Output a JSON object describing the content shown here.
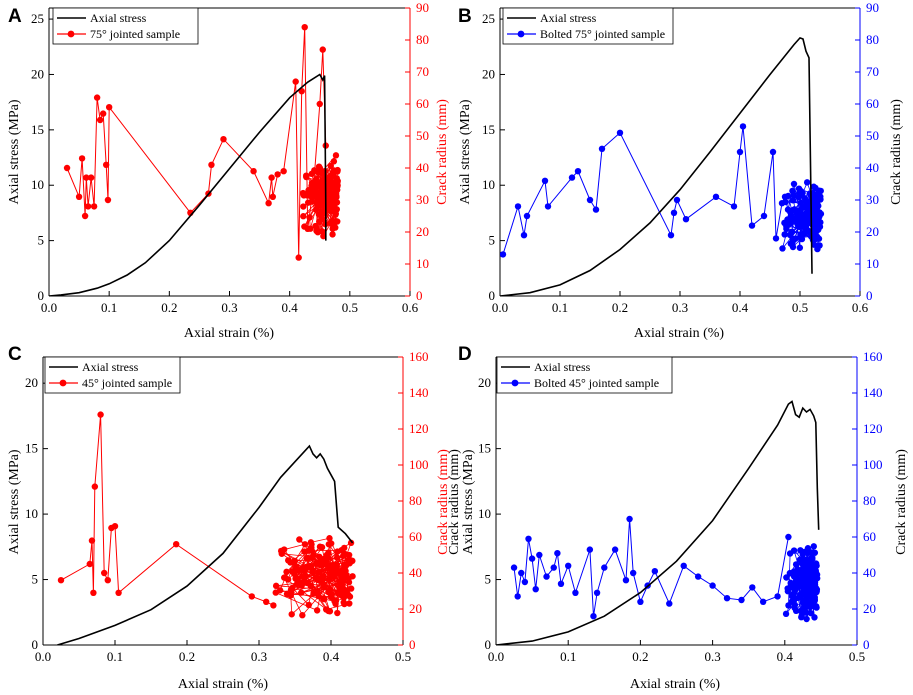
{
  "chart_data": [
    {
      "panel": "A",
      "type": "line+scatter",
      "xlabel": "Axial strain (%)",
      "ylabel": "Axial stress (MPa)",
      "y2label": "Crack radius (mm)",
      "xlim": [
        0,
        0.6
      ],
      "ylim": [
        0,
        26
      ],
      "y2lim": [
        0,
        90
      ],
      "xticks": [
        "0.0",
        "0.1",
        "0.2",
        "0.3",
        "0.4",
        "0.5",
        "0.6"
      ],
      "yticks": [
        "0",
        "5",
        "10",
        "15",
        "20",
        "25"
      ],
      "y2ticks": [
        "0",
        "10",
        "20",
        "30",
        "40",
        "50",
        "60",
        "70",
        "80",
        "90"
      ],
      "accent": "#ff0000",
      "legend": [
        "Axial stress",
        "75° jointed sample"
      ],
      "stress": {
        "x": [
          0,
          0.02,
          0.05,
          0.08,
          0.1,
          0.13,
          0.16,
          0.2,
          0.25,
          0.3,
          0.35,
          0.4,
          0.43,
          0.45,
          0.455,
          0.458,
          0.46,
          0.46
        ],
        "y": [
          0,
          0.1,
          0.3,
          0.7,
          1.1,
          1.9,
          3.0,
          5.0,
          8.2,
          11.5,
          14.8,
          17.9,
          19.3,
          20.0,
          19.5,
          19.9,
          8.0,
          5.0
        ]
      },
      "crack": {
        "x": [
          0.03,
          0.05,
          0.055,
          0.06,
          0.062,
          0.065,
          0.07,
          0.075,
          0.08,
          0.085,
          0.09,
          0.095,
          0.098,
          0.1,
          0.235,
          0.265,
          0.27,
          0.29,
          0.34,
          0.365,
          0.37,
          0.372,
          0.38,
          0.39,
          0.41,
          0.415,
          0.42,
          0.425,
          0.43,
          0.44,
          0.45,
          0.455,
          0.46
        ],
        "y": [
          40,
          31,
          43,
          25,
          37,
          28,
          37,
          28,
          62,
          55,
          57,
          41,
          30,
          59,
          26,
          32,
          41,
          49,
          39,
          29,
          37,
          31,
          38,
          39,
          67,
          12,
          64,
          84,
          21,
          35,
          60,
          77,
          47
        ]
      },
      "crack_cluster": {
        "x_range": [
          0.42,
          0.48
        ],
        "y_range": [
          17,
          45
        ]
      }
    },
    {
      "panel": "B",
      "type": "line+scatter",
      "xlabel": "Axial strain (%)",
      "ylabel": "Axial stress (MPa)",
      "y2label": "Crack radius (mm)",
      "xlim": [
        0,
        0.6
      ],
      "ylim": [
        0,
        26
      ],
      "y2lim": [
        0,
        90
      ],
      "xticks": [
        "0.0",
        "0.1",
        "0.2",
        "0.3",
        "0.4",
        "0.5",
        "0.6"
      ],
      "yticks": [
        "0",
        "5",
        "10",
        "15",
        "20",
        "25"
      ],
      "y2ticks": [
        "0",
        "10",
        "20",
        "30",
        "40",
        "50",
        "60",
        "70",
        "80",
        "90"
      ],
      "accent": "#0000ff",
      "legend": [
        "Axial stress",
        "Bolted 75° jointed sample"
      ],
      "stress": {
        "x": [
          0,
          0.05,
          0.1,
          0.15,
          0.2,
          0.25,
          0.3,
          0.35,
          0.4,
          0.45,
          0.49,
          0.5,
          0.505,
          0.51,
          0.515,
          0.518,
          0.52
        ],
        "y": [
          0,
          0.3,
          1.0,
          2.3,
          4.2,
          6.6,
          9.6,
          13.0,
          16.5,
          20.0,
          22.7,
          23.3,
          23.2,
          22.1,
          21.5,
          10,
          2
        ]
      },
      "crack": {
        "x": [
          0.005,
          0.03,
          0.04,
          0.045,
          0.075,
          0.08,
          0.12,
          0.13,
          0.15,
          0.16,
          0.17,
          0.2,
          0.285,
          0.29,
          0.295,
          0.31,
          0.36,
          0.39,
          0.4,
          0.405,
          0.42,
          0.44,
          0.455,
          0.46,
          0.47,
          0.475,
          0.48,
          0.49,
          0.5
        ],
        "y": [
          13,
          28,
          19,
          25,
          36,
          28,
          37,
          39,
          30,
          27,
          46,
          51,
          19,
          26,
          30,
          24,
          31,
          28,
          45,
          53,
          22,
          25,
          45,
          18,
          29,
          31,
          27,
          35,
          26
        ]
      },
      "crack_cluster": {
        "x_range": [
          0.47,
          0.535
        ],
        "y_range": [
          14,
          36
        ]
      }
    },
    {
      "panel": "C",
      "type": "line+scatter",
      "xlabel": "Axial strain (%)",
      "ylabel": "Axial stress (MPa)",
      "y2label": "Crack radius (mm)",
      "xlim": [
        0,
        0.5
      ],
      "ylim": [
        0,
        22
      ],
      "y2lim": [
        0,
        160
      ],
      "xticks": [
        "0.0",
        "0.1",
        "0.2",
        "0.3",
        "0.4",
        "0.5"
      ],
      "yticks": [
        "0",
        "5",
        "10",
        "15",
        "20"
      ],
      "y2ticks": [
        "0",
        "20",
        "40",
        "60",
        "80",
        "100",
        "120",
        "140",
        "160"
      ],
      "accent": "#ff0000",
      "legend": [
        "Axial stress",
        "45° jointed sample"
      ],
      "stress": {
        "x": [
          0.02,
          0.05,
          0.1,
          0.15,
          0.2,
          0.25,
          0.3,
          0.33,
          0.35,
          0.365,
          0.37,
          0.375,
          0.38,
          0.385,
          0.39,
          0.395,
          0.4,
          0.405,
          0.41,
          0.42,
          0.43
        ],
        "y": [
          0,
          0.5,
          1.5,
          2.7,
          4.5,
          7.0,
          10.5,
          12.8,
          14.0,
          14.9,
          15.2,
          14.6,
          14.3,
          14.6,
          14.2,
          13.5,
          13.0,
          12.5,
          9.0,
          8.5,
          7.8
        ]
      },
      "crack": {
        "x": [
          0.025,
          0.065,
          0.068,
          0.07,
          0.072,
          0.08,
          0.085,
          0.09,
          0.095,
          0.1,
          0.105,
          0.185,
          0.29,
          0.31,
          0.32
        ],
        "y": [
          36,
          45,
          58,
          29,
          88,
          128,
          40,
          36,
          65,
          66,
          29,
          56,
          27,
          24,
          22
        ]
      },
      "crack_cluster": {
        "x_range": [
          0.32,
          0.43
        ],
        "y_range": [
          14,
          64
        ]
      }
    },
    {
      "panel": "D",
      "type": "line+scatter",
      "xlabel": "Axial strain (%)",
      "ylabel": "Axial stress (MPa)",
      "ylabel_overlap": "Crack radius (mm)",
      "y2label": "Crack radius (mm)",
      "xlim": [
        0,
        0.5
      ],
      "ylim": [
        0,
        22
      ],
      "y2lim": [
        0,
        160
      ],
      "xticks": [
        "0.0",
        "0.1",
        "0.2",
        "0.3",
        "0.4",
        "0.5"
      ],
      "yticks": [
        "0",
        "5",
        "10",
        "15",
        "20"
      ],
      "y2ticks": [
        "0",
        "20",
        "40",
        "60",
        "80",
        "100",
        "120",
        "140",
        "160"
      ],
      "accent": "#0000ff",
      "legend": [
        "Axial stress",
        "Bolted 45° jointed sample"
      ],
      "stress": {
        "x": [
          0,
          0.05,
          0.1,
          0.15,
          0.2,
          0.25,
          0.3,
          0.35,
          0.39,
          0.405,
          0.41,
          0.415,
          0.42,
          0.425,
          0.43,
          0.435,
          0.44,
          0.443,
          0.445,
          0.447
        ],
        "y": [
          0,
          0.3,
          1.0,
          2.2,
          4.0,
          6.4,
          9.5,
          13.5,
          16.8,
          18.4,
          18.6,
          17.6,
          17.4,
          18.1,
          17.8,
          18.0,
          17.5,
          17.0,
          12.0,
          8.8
        ]
      },
      "crack": {
        "x": [
          0.025,
          0.03,
          0.035,
          0.04,
          0.045,
          0.05,
          0.055,
          0.06,
          0.07,
          0.08,
          0.085,
          0.09,
          0.1,
          0.11,
          0.13,
          0.135,
          0.14,
          0.15,
          0.165,
          0.18,
          0.185,
          0.19,
          0.2,
          0.21,
          0.22,
          0.24,
          0.26,
          0.28,
          0.3,
          0.32,
          0.34,
          0.355,
          0.37,
          0.39,
          0.405
        ],
        "y": [
          43,
          27,
          40,
          35,
          59,
          48,
          31,
          50,
          38,
          43,
          51,
          34,
          44,
          29,
          53,
          16,
          29,
          43,
          53,
          36,
          70,
          40,
          24,
          33,
          41,
          23,
          44,
          38,
          33,
          26,
          25,
          32,
          24,
          27,
          60
        ]
      },
      "crack_cluster": {
        "x_range": [
          0.4,
          0.445
        ],
        "y_range": [
          13,
          57
        ]
      }
    }
  ]
}
